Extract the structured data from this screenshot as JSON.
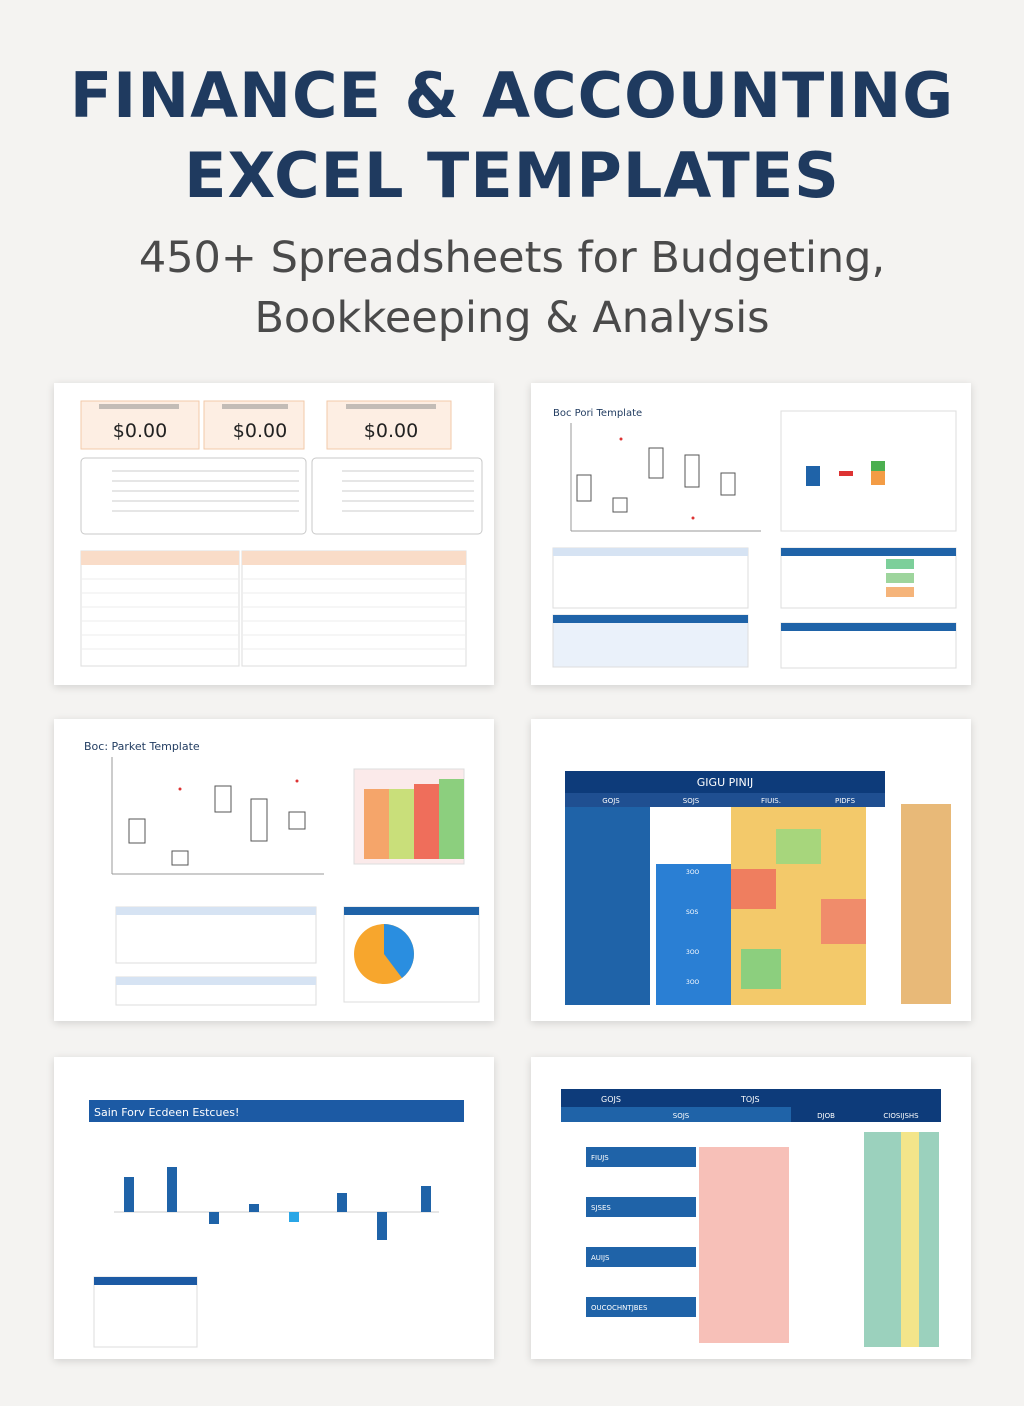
{
  "hero": {
    "title_line1": "FINANCE & ACCOUNTING",
    "title_line2": "EXCEL TEMPLATES",
    "subtitle_line1": "450+ Spreadsheets for Budgeting,",
    "subtitle_line2": "Bookkeeping & Analysis"
  },
  "colors": {
    "title": "#1f3a5f",
    "subtitle": "#4a4a4a",
    "accent_blue": "#1f63a8",
    "peach": "#fdeee3"
  },
  "templates": [
    {
      "name": "summary-dashboard",
      "kpis": [
        "$0.00",
        "$0.00",
        "$0.00"
      ]
    },
    {
      "name": "box-plot-template",
      "title": "Boc Pori Template"
    },
    {
      "name": "box-parket-template",
      "title": "Boc: Parket Template"
    },
    {
      "name": "heatmap-template",
      "header": "GIGU PINIJ",
      "columns": [
        "GOJS",
        "SOJS",
        "FIUIS.",
        "PIDFS"
      ],
      "values": [
        "3OO",
        "SOS",
        "3OO",
        "3OO"
      ]
    },
    {
      "name": "variance-chart-template",
      "title": "Sain Forv Ecdeen Estcues!"
    },
    {
      "name": "ledger-template",
      "header_left": "GOJS",
      "header_mid": "TOJS",
      "subheader": "SOJS",
      "columns": [
        "DJOB",
        "CIOSIJSHS"
      ],
      "rows": [
        "FIUJS",
        "SJSES",
        "AUIJS",
        "OUCOCHNTJBES"
      ]
    }
  ]
}
